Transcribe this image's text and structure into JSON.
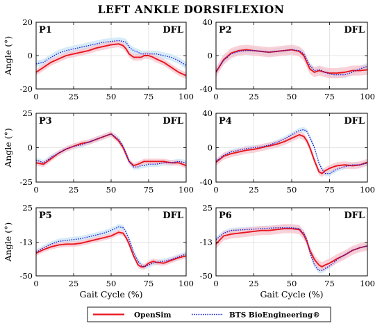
{
  "chart_data": {
    "type": "line",
    "title": "LEFT ANKLE DORSIFLEXION",
    "xlabel": "Gait Cycle (%)",
    "ylabel": "Angle (°)",
    "label_right": "DFL",
    "legend": {
      "placement": "bottom",
      "entries": [
        {
          "name": "OpenSim",
          "color": "#e8151d",
          "style": "solid"
        },
        {
          "name": "BTS BioEngineering®",
          "color": "#1b1bd6",
          "style": "dotted"
        }
      ]
    },
    "colors": {
      "opensim": "#e8151d",
      "opensim_band": "#f7c2cc",
      "bts": "#1b1bd6",
      "bts_band": "#c8e4f6"
    },
    "x": [
      0,
      5,
      10,
      15,
      20,
      25,
      30,
      35,
      40,
      45,
      50,
      55,
      58,
      60,
      62,
      65,
      68,
      70,
      72,
      75,
      78,
      80,
      85,
      90,
      95,
      100
    ],
    "xticks": [
      0,
      25,
      50,
      75,
      100
    ],
    "xlim": [
      0,
      100
    ],
    "panels": [
      {
        "id": "P1",
        "ylim": [
          -20,
          20
        ],
        "yticks": [
          -20,
          0,
          20
        ],
        "grid": true,
        "series": [
          {
            "name": "OpenSim",
            "values": [
              -10,
              -7,
              -4,
              -2,
              0,
              1,
              2,
              3,
              4.5,
              5.5,
              6.5,
              7,
              6,
              4,
              1,
              -1,
              -1,
              -1,
              0,
              0,
              -1,
              -2,
              -4,
              -7,
              -10,
              -12
            ],
            "band": 2
          },
          {
            "name": "BTS BioEngineering®",
            "values": [
              -5,
              -4,
              -1,
              1.5,
              3,
              4,
              5,
              6,
              7,
              8,
              8.5,
              9,
              8.5,
              8,
              5,
              3,
              2,
              1,
              1,
              1,
              1,
              1,
              0,
              -1,
              -3,
              -6
            ],
            "band": 2
          }
        ]
      },
      {
        "id": "P2",
        "ylim": [
          -40,
          40
        ],
        "yticks": [
          -40,
          0,
          40
        ],
        "grid": true,
        "series": [
          {
            "name": "OpenSim",
            "values": [
              -20,
              -5,
              3,
              6,
              7,
              6,
              5,
              4,
              5,
              6,
              7,
              5,
              0,
              -8,
              -16,
              -20,
              -18,
              -19,
              -20,
              -21,
              -21,
              -21,
              -20,
              -18,
              -18,
              -17
            ],
            "band": 6
          },
          {
            "name": "BTS BioEngineering®",
            "values": [
              -19,
              -6,
              2,
              5,
              6,
              6,
              5,
              4,
              5,
              6,
              7,
              6,
              2,
              -5,
              -12,
              -18,
              -17,
              -18,
              -20,
              -22,
              -23,
              -23,
              -23,
              -20,
              -16,
              -13
            ],
            "band": 4
          }
        ]
      },
      {
        "id": "P3",
        "ylim": [
          -25,
          25
        ],
        "yticks": [
          -25,
          0,
          25
        ],
        "grid": true,
        "series": [
          {
            "name": "OpenSim",
            "values": [
              -11,
              -12,
              -8,
              -4,
              -1,
              1,
              3,
              4,
              6,
              8,
              10,
              5,
              0,
              -5,
              -10,
              -13,
              -12,
              -11,
              -10,
              -10,
              -10,
              -10,
              -10,
              -11,
              -11,
              -13
            ],
            "band": 2
          },
          {
            "name": "BTS BioEngineering®",
            "values": [
              -9,
              -11,
              -7,
              -4,
              -1,
              1,
              2,
              4,
              6,
              8,
              10,
              6,
              1,
              -4,
              -10,
              -14,
              -14,
              -13,
              -13,
              -12,
              -12,
              -12,
              -11,
              -11,
              -10,
              -11
            ],
            "band": 2
          }
        ]
      },
      {
        "id": "P4",
        "ylim": [
          -40,
          40
        ],
        "yticks": [
          -40,
          0,
          40
        ],
        "grid": true,
        "series": [
          {
            "name": "OpenSim",
            "values": [
              -17,
              -10,
              -7,
              -5,
              -3,
              -2,
              0,
              2,
              4,
              7,
              11,
              15,
              13,
              8,
              0,
              -15,
              -28,
              -30,
              -27,
              -24,
              -22,
              -21,
              -20,
              -21,
              -20,
              -17
            ],
            "band": 4
          },
          {
            "name": "BTS BioEngineering®",
            "values": [
              -16,
              -9,
              -5,
              -3,
              -1,
              0,
              1,
              3,
              6,
              10,
              15,
              20,
              21,
              19,
              12,
              0,
              -18,
              -25,
              -30,
              -30,
              -27,
              -25,
              -22,
              -20,
              -20,
              -18
            ],
            "band": 3
          }
        ]
      },
      {
        "id": "P5",
        "ylim": [
          -50,
          25
        ],
        "yticks": [
          -50,
          -13,
          25
        ],
        "grid": true,
        "series": [
          {
            "name": "OpenSim",
            "values": [
              -25,
              -21,
              -18,
              -16,
              -15,
              -15,
              -14,
              -12,
              -10,
              -8,
              -6,
              -2,
              -3,
              -8,
              -15,
              -28,
              -38,
              -40,
              -40,
              -36,
              -34,
              -35,
              -36,
              -33,
              -30,
              -28
            ],
            "band": 3
          },
          {
            "name": "BTS BioEngineering®",
            "values": [
              -24,
              -19,
              -15,
              -12,
              -11,
              -10,
              -9,
              -7,
              -5,
              -3,
              0,
              4,
              3,
              -2,
              -10,
              -24,
              -34,
              -38,
              -40,
              -38,
              -36,
              -35,
              -34,
              -32,
              -29,
              -26
            ],
            "band": 3
          }
        ]
      },
      {
        "id": "P6",
        "ylim": [
          -50,
          25
        ],
        "yticks": [
          -50,
          -13,
          25
        ],
        "grid": true,
        "series": [
          {
            "name": "OpenSim",
            "values": [
              -15,
              -6,
              -4,
              -3,
              -2,
              -1,
              0,
              0,
              1,
              2,
              2,
              1,
              -5,
              -12,
              -22,
              -32,
              -38,
              -40,
              -38,
              -36,
              -33,
              -31,
              -27,
              -22,
              -19,
              -17
            ],
            "band": 5
          },
          {
            "name": "BTS BioEngineering®",
            "values": [
              -10,
              -3,
              0,
              0.5,
              1,
              1.5,
              2,
              2.5,
              3,
              3,
              3,
              2,
              -3,
              -10,
              -24,
              -38,
              -44,
              -44,
              -42,
              -39,
              -35,
              -32,
              -27,
              -22,
              -19,
              -17
            ],
            "band": 3
          }
        ]
      }
    ]
  }
}
